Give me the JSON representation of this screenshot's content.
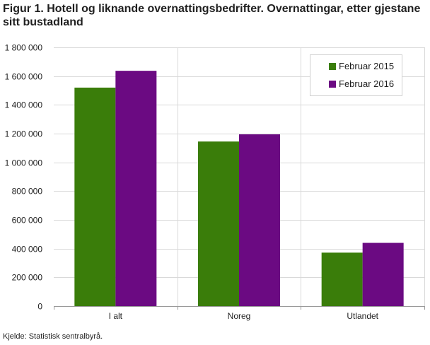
{
  "title": "Figur 1. Hotell og liknande overnattingsbedrifter. Overnattingar, etter gjestane sitt bustadland",
  "source": "Kjelde: Statistisk sentralbyrå.",
  "colors": {
    "series_2015": "#3a7d0a",
    "series_2016": "#6b0a82",
    "grid": "#d9d9d9",
    "axis": "#9a9a9a"
  },
  "chart_data": {
    "type": "bar",
    "title": "Figur 1. Hotell og liknande overnattingsbedrifter. Overnattingar, etter gjestane sitt bustadland",
    "categories": [
      "I alt",
      "Noreg",
      "Utlandet"
    ],
    "series": [
      {
        "name": "Februar 2015",
        "values": [
          1520000,
          1145000,
          372000
        ]
      },
      {
        "name": "Februar 2016",
        "values": [
          1637000,
          1195000,
          440000
        ]
      }
    ],
    "ylim": [
      0,
      1800000
    ],
    "yticks": [
      0,
      200000,
      400000,
      600000,
      800000,
      1000000,
      1200000,
      1400000,
      1600000,
      1800000
    ],
    "ytick_labels": [
      "0",
      "200 000",
      "400 000",
      "600 000",
      "800 000",
      "1 000 000",
      "1 200 000",
      "1 400 000",
      "1 600 000",
      "1 800 000"
    ],
    "xlabel": "",
    "ylabel": "",
    "grid": true,
    "legend_position": "top-right"
  }
}
